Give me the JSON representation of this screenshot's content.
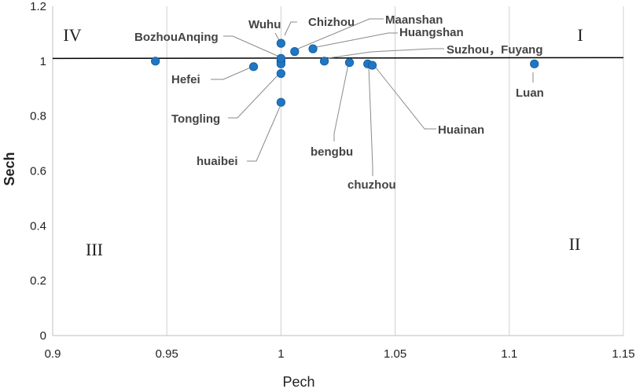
{
  "chart_data": {
    "type": "scatter",
    "xlabel": "Pech",
    "ylabel": "Sech",
    "xlim": [
      0.9,
      1.15
    ],
    "ylim": [
      0,
      1.2
    ],
    "x_ticks": [
      "0.9",
      "0.95",
      "1",
      "1.05",
      "1.1",
      "1.15"
    ],
    "y_ticks": [
      "0",
      "0.2",
      "0.4",
      "0.6",
      "0.8",
      "1",
      "1.2"
    ],
    "grid": "vertical",
    "reference_line": {
      "y": 1.01
    },
    "quadrants": [
      "I",
      "II",
      "III",
      "IV"
    ],
    "points": [
      {
        "x": 0.945,
        "y": 1.0
      },
      {
        "x": 0.988,
        "y": 0.98
      },
      {
        "x": 1.0,
        "y": 1.0
      },
      {
        "x": 1.0,
        "y": 0.99
      },
      {
        "x": 1.0,
        "y": 1.01
      },
      {
        "x": 1.0,
        "y": 1.065
      },
      {
        "x": 1.0,
        "y": 0.955
      },
      {
        "x": 1.0,
        "y": 0.85
      },
      {
        "x": 1.006,
        "y": 1.035
      },
      {
        "x": 1.014,
        "y": 1.045
      },
      {
        "x": 1.019,
        "y": 1.0
      },
      {
        "x": 1.03,
        "y": 0.995
      },
      {
        "x": 1.038,
        "y": 0.99
      },
      {
        "x": 1.04,
        "y": 0.985
      },
      {
        "x": 1.111,
        "y": 0.99
      }
    ],
    "labels": [
      "Bozhou",
      "Anqing",
      "Wuhu",
      "Chizhou",
      "Maanshan",
      "Huangshan",
      "Suzhou，Fuyang",
      "Hefei",
      "Tongling",
      "huaibei",
      "bengbu",
      "chuzhou",
      "Huainan",
      "Luan"
    ],
    "marker_color": "#1f77c4"
  }
}
